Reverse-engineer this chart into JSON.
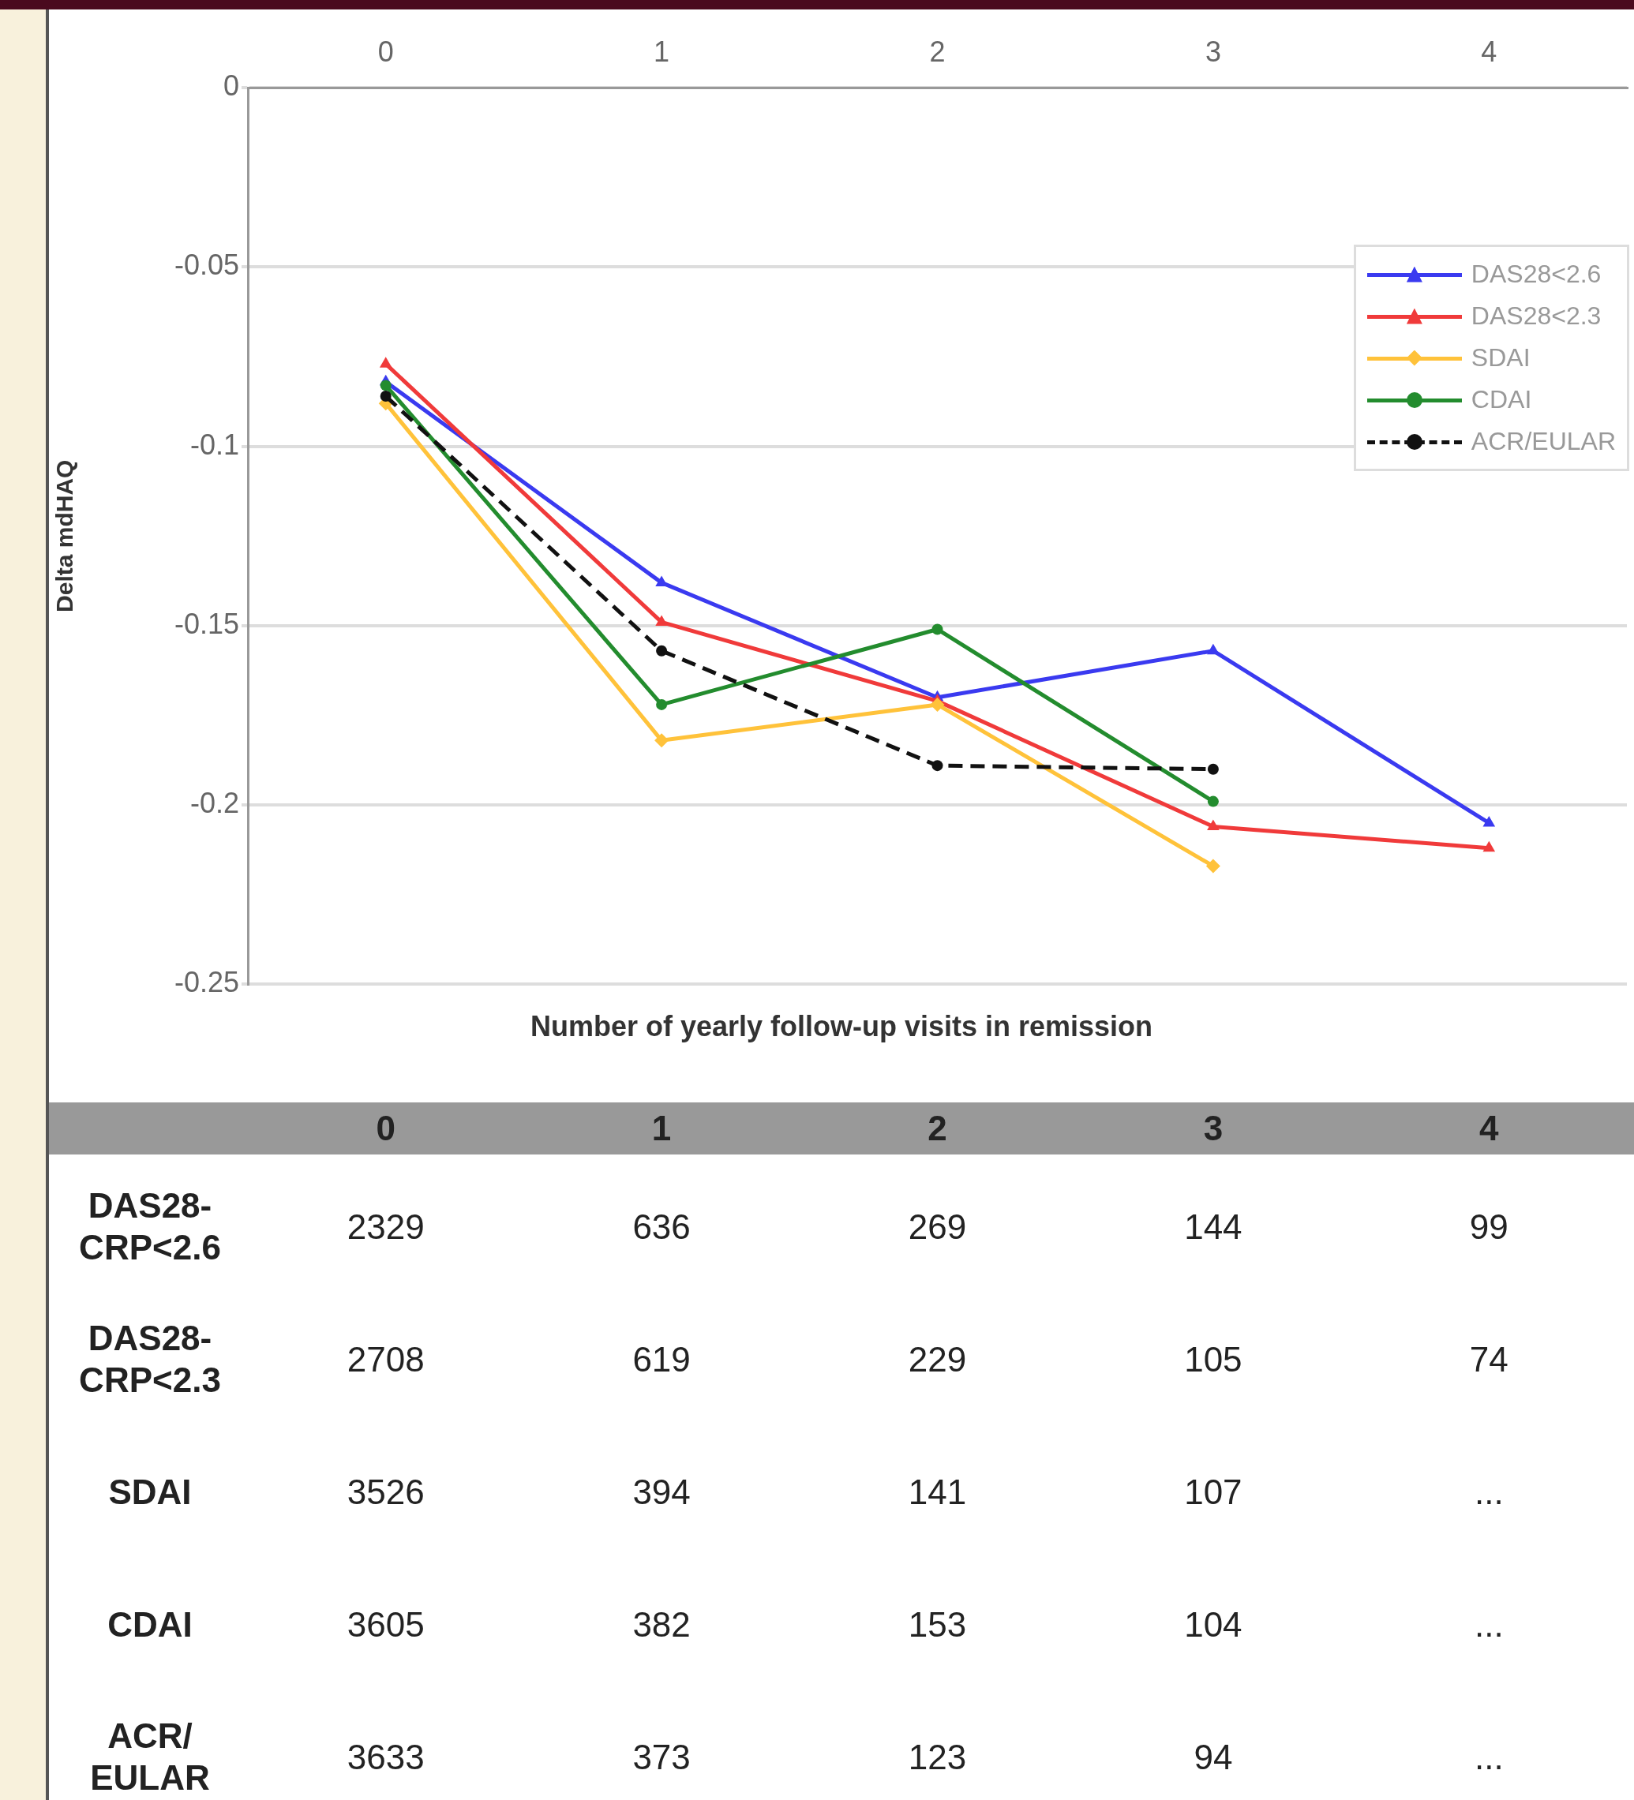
{
  "chart_data": {
    "type": "line",
    "xlabel": "Number of yearly follow-up visits in remission",
    "ylabel": "Delta mdHAQ",
    "categories": [
      "0",
      "1",
      "2",
      "3",
      "4"
    ],
    "ylim": [
      -0.25,
      0
    ],
    "yticks": [
      -0.25,
      -0.2,
      -0.15,
      -0.1,
      -0.05,
      0
    ],
    "grid": "y",
    "legend": "top right",
    "series": [
      {
        "name": "DAS28<2.6",
        "color": "#3a3af0",
        "marker": "triangle",
        "values": [
          -0.082,
          -0.138,
          -0.17,
          -0.157,
          -0.205
        ]
      },
      {
        "name": "DAS28<2.3",
        "color": "#f03a3a",
        "marker": "triangle",
        "values": [
          -0.077,
          -0.149,
          -0.171,
          -0.206,
          -0.212
        ]
      },
      {
        "name": "SDAI",
        "color": "#ffc23a",
        "marker": "diamond",
        "values": [
          -0.088,
          -0.182,
          -0.172,
          -0.217,
          null
        ]
      },
      {
        "name": "CDAI",
        "color": "#238c2e",
        "marker": "circle",
        "values": [
          -0.083,
          -0.172,
          -0.151,
          -0.199,
          null
        ]
      },
      {
        "name": "ACR/EULAR",
        "color": "#111111",
        "marker": "circle",
        "line_style": "dashed",
        "values": [
          -0.086,
          -0.157,
          -0.189,
          -0.19,
          null
        ]
      }
    ],
    "annotations": [
      "DAS28-CRP<2.6",
      "2329",
      "636",
      "269",
      "144",
      "99",
      "DAS28-CRP<2.3",
      "2708",
      "619",
      "229",
      "105",
      "74",
      "SDAI",
      "3526",
      "394",
      "141",
      "107",
      "...",
      "CDAI",
      "3605",
      "382",
      "153",
      "104",
      "...",
      "ACR/ EULAR",
      "3633",
      "373",
      "123",
      "94",
      "..."
    ]
  }
}
